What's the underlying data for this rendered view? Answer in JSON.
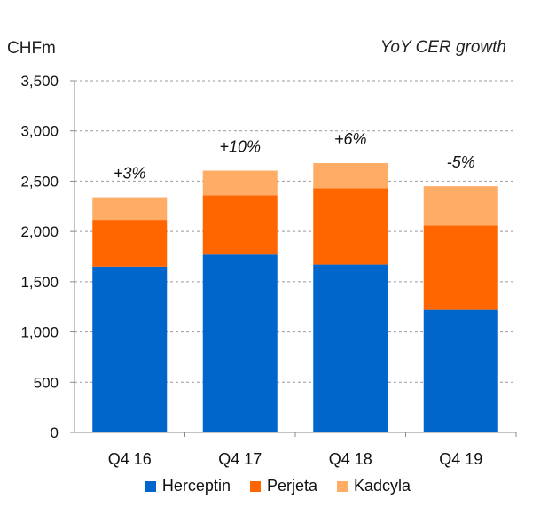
{
  "chart_data": {
    "type": "bar",
    "stacked": true,
    "ylabel": "CHFm",
    "annotation_title": "YoY CER growth",
    "ylim": [
      0,
      3500
    ],
    "yticks": [
      0,
      500,
      1000,
      1500,
      2000,
      2500,
      3000,
      3500
    ],
    "ytick_labels": [
      "0",
      "500",
      "1,000",
      "1,500",
      "2,000",
      "2,500",
      "3,000",
      "3,500"
    ],
    "grid": "horizontal dashed",
    "categories": [
      "Q4 16",
      "Q4 17",
      "Q4 18",
      "Q4 19"
    ],
    "series": [
      {
        "name": "Herceptin",
        "color": "#0066cc",
        "values": [
          1650,
          1770,
          1670,
          1220
        ]
      },
      {
        "name": "Perjeta",
        "color": "#ff6600",
        "values": [
          465,
          590,
          760,
          840
        ]
      },
      {
        "name": "Kadcyla",
        "color": "#ffad66",
        "values": [
          225,
          245,
          250,
          390
        ]
      }
    ],
    "growth_labels": [
      "+3%",
      "+10%",
      "+6%",
      "-5%"
    ],
    "legend_position": "bottom"
  }
}
